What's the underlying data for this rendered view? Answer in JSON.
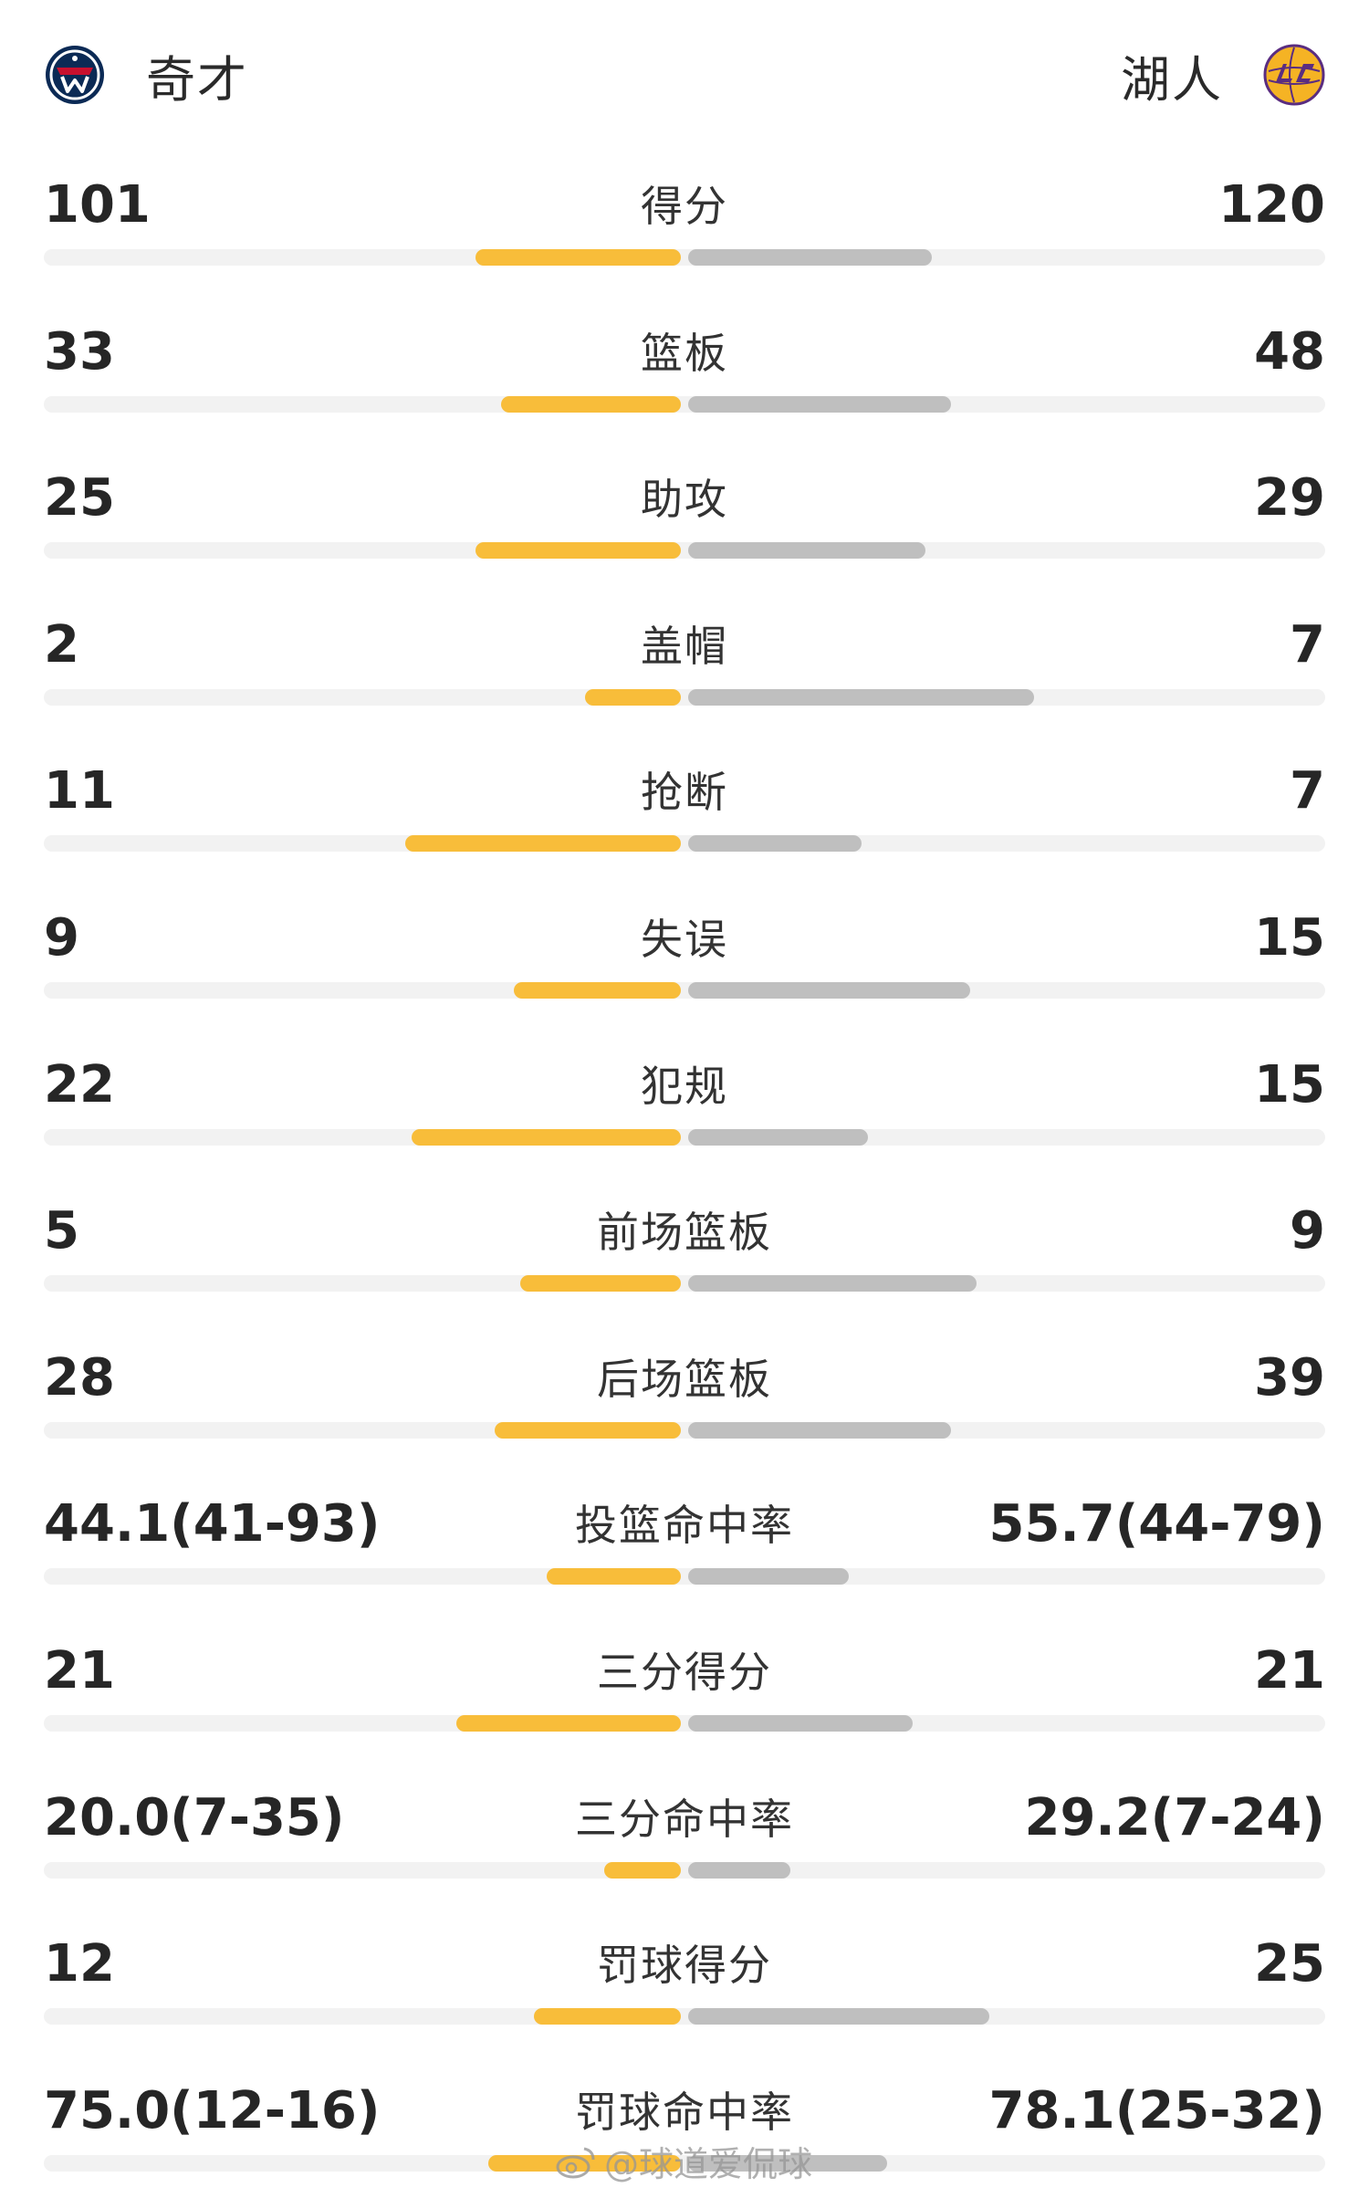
{
  "header": {
    "home_team": "奇才",
    "away_team": "湖人",
    "home_logo_icon": "wizards-logo-icon",
    "away_logo_icon": "lakers-logo-icon"
  },
  "colors": {
    "home_bar": "#f8bd3a",
    "away_bar": "#bfbfbf",
    "track": "#f2f2f2"
  },
  "stats": [
    {
      "label": "得分",
      "home": "101",
      "away": "120",
      "home_share": 0.32,
      "away_share": 0.38
    },
    {
      "label": "篮板",
      "home": "33",
      "away": "48",
      "home_share": 0.28,
      "away_share": 0.41
    },
    {
      "label": "助攻",
      "home": "25",
      "away": "29",
      "home_share": 0.32,
      "away_share": 0.37
    },
    {
      "label": "盖帽",
      "home": "2",
      "away": "7",
      "home_share": 0.15,
      "away_share": 0.54
    },
    {
      "label": "抢断",
      "home": "11",
      "away": "7",
      "home_share": 0.43,
      "away_share": 0.27
    },
    {
      "label": "失误",
      "home": "9",
      "away": "15",
      "home_share": 0.26,
      "away_share": 0.44
    },
    {
      "label": "犯规",
      "home": "22",
      "away": "15",
      "home_share": 0.42,
      "away_share": 0.28
    },
    {
      "label": "前场篮板",
      "home": "5",
      "away": "9",
      "home_share": 0.25,
      "away_share": 0.45
    },
    {
      "label": "后场篮板",
      "home": "28",
      "away": "39",
      "home_share": 0.29,
      "away_share": 0.41
    },
    {
      "label": "投篮命中率",
      "home": "44.1(41-93)",
      "away": "55.7(44-79)",
      "home_share": 0.21,
      "away_share": 0.25
    },
    {
      "label": "三分得分",
      "home": "21",
      "away": "21",
      "home_share": 0.35,
      "away_share": 0.35
    },
    {
      "label": "三分命中率",
      "home": "20.0(7-35)",
      "away": "29.2(7-24)",
      "home_share": 0.12,
      "away_share": 0.16
    },
    {
      "label": "罚球得分",
      "home": "12",
      "away": "25",
      "home_share": 0.23,
      "away_share": 0.47
    },
    {
      "label": "罚球命中率",
      "home": "75.0(12-16)",
      "away": "78.1(25-32)",
      "home_share": 0.3,
      "away_share": 0.31
    }
  ],
  "watermark": {
    "text": "@球道爱侃球",
    "icon": "weibo-icon"
  }
}
